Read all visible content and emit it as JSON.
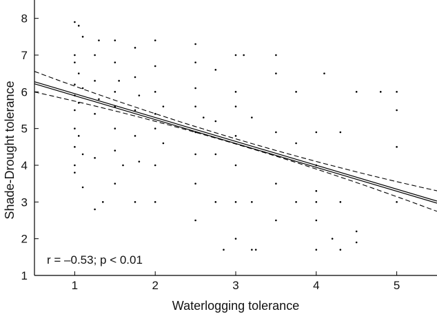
{
  "chart_data": {
    "type": "scatter",
    "title": "",
    "xlabel": "Waterlogging tolerance",
    "ylabel": "Shade-Drought tolerance",
    "xlim": [
      0.5,
      5.5
    ],
    "ylim": [
      1,
      8.5
    ],
    "xticks": [
      "1",
      "2",
      "3",
      "4",
      "5"
    ],
    "yticks": [
      "1",
      "2",
      "3",
      "4",
      "5",
      "6",
      "7",
      "8"
    ],
    "annotation": "r = –0.53; p < 0.01",
    "regression": {
      "intercept": 6.6,
      "slope": -0.65
    },
    "confidence_band": {
      "upper_offset_at_ends": 0.28,
      "upper_offset_at_center": 0.07
    },
    "grid": false,
    "points_sample": [
      [
        1.0,
        7.9
      ],
      [
        1.0,
        7.0
      ],
      [
        1.0,
        6.8
      ],
      [
        1.0,
        6.2
      ],
      [
        1.0,
        5.9
      ],
      [
        1.0,
        5.5
      ],
      [
        1.0,
        5.0
      ],
      [
        1.0,
        4.5
      ],
      [
        1.0,
        4.0
      ],
      [
        1.0,
        3.8
      ],
      [
        1.05,
        7.8
      ],
      [
        1.05,
        6.5
      ],
      [
        1.05,
        5.7
      ],
      [
        1.05,
        4.8
      ],
      [
        1.1,
        7.5
      ],
      [
        1.1,
        6.1
      ],
      [
        1.1,
        4.3
      ],
      [
        1.1,
        3.4
      ],
      [
        1.25,
        7.0
      ],
      [
        1.25,
        6.3
      ],
      [
        1.25,
        5.4
      ],
      [
        1.25,
        4.2
      ],
      [
        1.25,
        2.8
      ],
      [
        1.3,
        7.4
      ],
      [
        1.3,
        5.8
      ],
      [
        1.35,
        3.0
      ],
      [
        1.5,
        7.4
      ],
      [
        1.5,
        6.8
      ],
      [
        1.5,
        6.0
      ],
      [
        1.5,
        5.6
      ],
      [
        1.5,
        5.0
      ],
      [
        1.5,
        4.4
      ],
      [
        1.5,
        3.5
      ],
      [
        1.55,
        6.3
      ],
      [
        1.6,
        4.0
      ],
      [
        1.75,
        7.2
      ],
      [
        1.75,
        6.4
      ],
      [
        1.75,
        5.5
      ],
      [
        1.75,
        4.8
      ],
      [
        1.75,
        3.0
      ],
      [
        1.8,
        5.9
      ],
      [
        1.8,
        4.1
      ],
      [
        2.0,
        7.4
      ],
      [
        2.0,
        6.7
      ],
      [
        2.0,
        6.0
      ],
      [
        2.0,
        5.4
      ],
      [
        2.0,
        5.0
      ],
      [
        2.0,
        4.0
      ],
      [
        2.0,
        3.0
      ],
      [
        2.1,
        5.6
      ],
      [
        2.1,
        4.6
      ],
      [
        2.5,
        7.3
      ],
      [
        2.5,
        6.8
      ],
      [
        2.5,
        6.1
      ],
      [
        2.5,
        5.6
      ],
      [
        2.5,
        4.9
      ],
      [
        2.5,
        4.3
      ],
      [
        2.5,
        3.5
      ],
      [
        2.5,
        2.5
      ],
      [
        2.6,
        5.3
      ],
      [
        2.75,
        6.6
      ],
      [
        2.75,
        5.2
      ],
      [
        2.75,
        4.3
      ],
      [
        2.75,
        3.0
      ],
      [
        3.0,
        7.0
      ],
      [
        3.0,
        6.0
      ],
      [
        3.0,
        5.6
      ],
      [
        3.0,
        4.8
      ],
      [
        3.0,
        4.0
      ],
      [
        3.0,
        3.0
      ],
      [
        3.0,
        2.0
      ],
      [
        3.1,
        7.0
      ],
      [
        3.2,
        5.3
      ],
      [
        3.2,
        3.0
      ],
      [
        3.2,
        1.7
      ],
      [
        3.5,
        7.0
      ],
      [
        3.5,
        6.5
      ],
      [
        3.5,
        4.9
      ],
      [
        3.5,
        3.5
      ],
      [
        3.5,
        2.5
      ],
      [
        3.75,
        6.0
      ],
      [
        3.75,
        4.6
      ],
      [
        3.75,
        3.0
      ],
      [
        4.0,
        4.9
      ],
      [
        4.0,
        4.0
      ],
      [
        4.0,
        3.3
      ],
      [
        4.0,
        3.0
      ],
      [
        4.0,
        2.5
      ],
      [
        4.0,
        1.7
      ],
      [
        4.1,
        6.5
      ],
      [
        4.3,
        4.9
      ],
      [
        4.3,
        3.0
      ],
      [
        4.3,
        1.7
      ],
      [
        4.5,
        6.0
      ],
      [
        4.5,
        2.2
      ],
      [
        4.5,
        1.9
      ],
      [
        4.8,
        6.0
      ],
      [
        5.0,
        6.0
      ],
      [
        5.0,
        5.5
      ],
      [
        5.0,
        4.5
      ],
      [
        5.0,
        3.0
      ],
      [
        3.25,
        1.7
      ],
      [
        2.85,
        1.7
      ],
      [
        4.2,
        2.0
      ]
    ]
  }
}
